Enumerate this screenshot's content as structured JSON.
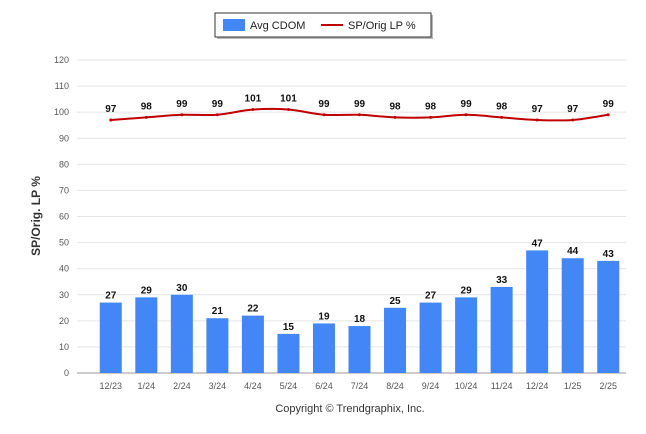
{
  "chart_data": {
    "type": "bar",
    "categories": [
      "12/23",
      "1/24",
      "2/24",
      "3/24",
      "4/24",
      "5/24",
      "6/24",
      "7/24",
      "8/24",
      "9/24",
      "10/24",
      "11/24",
      "12/24",
      "1/25",
      "2/25"
    ],
    "series": [
      {
        "name": "Avg CDOM",
        "type": "bar",
        "color": "#4287f5",
        "values": [
          27,
          29,
          30,
          21,
          22,
          15,
          19,
          18,
          25,
          27,
          29,
          33,
          47,
          44,
          43
        ]
      },
      {
        "name": "SP/Orig LP %",
        "type": "line",
        "color": "#c00000",
        "values": [
          97,
          98,
          99,
          99,
          101,
          101,
          99,
          99,
          98,
          98,
          99,
          98,
          97,
          97,
          99
        ]
      }
    ],
    "ylabel": "SP/Orig. LP %",
    "ylim": [
      0,
      120
    ],
    "yticks": [
      0,
      10,
      20,
      30,
      40,
      50,
      60,
      70,
      80,
      90,
      100,
      110,
      120
    ],
    "grid": true,
    "legend_position": "top-center"
  },
  "footer": {
    "copyright": "Copyright © Trendgraphix, Inc."
  }
}
